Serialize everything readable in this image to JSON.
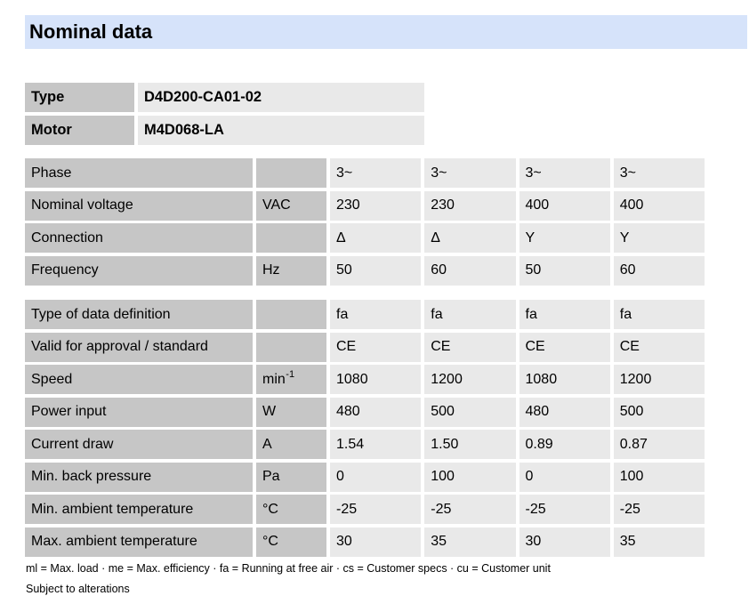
{
  "header": {
    "title": "Nominal data"
  },
  "colors": {
    "title_bg": "#d6e3fa",
    "label_cell_bg": "#c6c6c6",
    "value_cell_bg": "#e9e9e9",
    "text": "#000000"
  },
  "id_table": {
    "rows": [
      {
        "label": "Type",
        "value": "D4D200-CA01-02"
      },
      {
        "label": "Motor",
        "value": "M4D068-LA"
      }
    ]
  },
  "spec_table": {
    "column_count": 4,
    "block1": [
      {
        "label": "Phase",
        "unit": "",
        "values": [
          "3~",
          "3~",
          "3~",
          "3~"
        ]
      },
      {
        "label": "Nominal voltage",
        "unit": "VAC",
        "values": [
          "230",
          "230",
          "400",
          "400"
        ]
      },
      {
        "label": "Connection",
        "unit": "",
        "values": [
          "Δ",
          "Δ",
          "Y",
          "Y"
        ]
      },
      {
        "label": "Frequency",
        "unit": "Hz",
        "values": [
          "50",
          "60",
          "50",
          "60"
        ]
      }
    ],
    "block2": [
      {
        "label": "Type of data definition",
        "unit": "",
        "values": [
          "fa",
          "fa",
          "fa",
          "fa"
        ]
      },
      {
        "label": "Valid for approval / standard",
        "unit": "",
        "values": [
          "CE",
          "CE",
          "CE",
          "CE"
        ]
      },
      {
        "label": "Speed",
        "unit": "min",
        "unit_sup": "-1",
        "values": [
          "1080",
          "1200",
          "1080",
          "1200"
        ]
      },
      {
        "label": "Power input",
        "unit": "W",
        "values": [
          "480",
          "500",
          "480",
          "500"
        ]
      },
      {
        "label": "Current draw",
        "unit": "A",
        "values": [
          "1.54",
          "1.50",
          "0.89",
          "0.87"
        ]
      },
      {
        "label": "Min. back pressure",
        "unit": "Pa",
        "values": [
          "0",
          "100",
          "0",
          "100"
        ]
      },
      {
        "label": "Min. ambient temperature",
        "unit": "°C",
        "values": [
          "-25",
          "-25",
          "-25",
          "-25"
        ]
      },
      {
        "label": "Max. ambient temperature",
        "unit": "°C",
        "values": [
          "30",
          "35",
          "30",
          "35"
        ]
      }
    ]
  },
  "footer": {
    "legend": "ml = Max. load · me = Max. efficiency · fa = Running at free air · cs = Customer specs · cu = Customer unit",
    "note": "Subject to alterations"
  }
}
